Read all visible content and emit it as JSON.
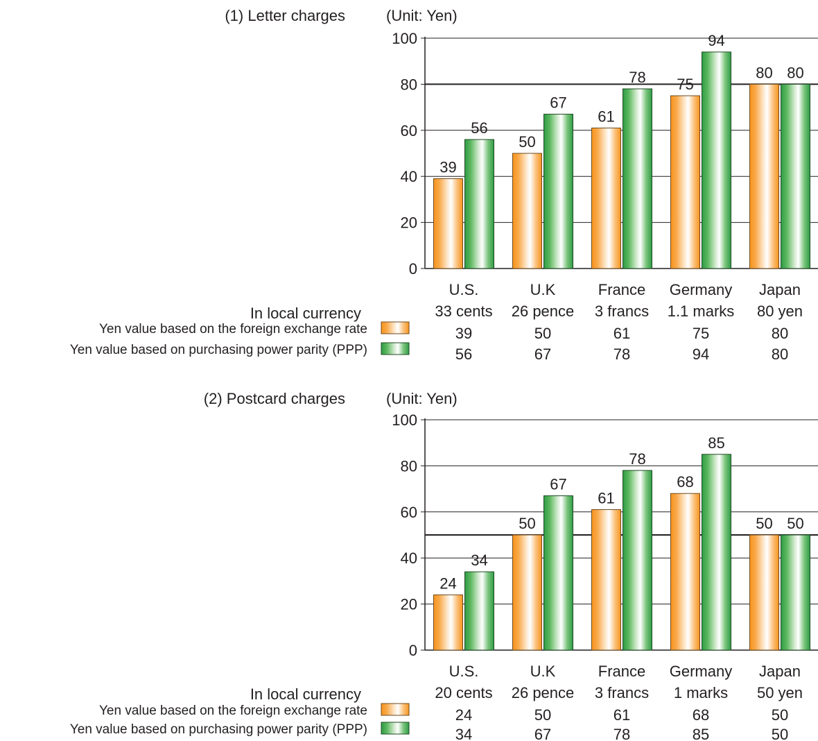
{
  "chart_data": [
    {
      "type": "bar",
      "title": "(1) Letter charges",
      "unit_label": "(Unit: Yen)",
      "ylim": [
        0,
        100
      ],
      "yticks": [
        0,
        20,
        40,
        60,
        80,
        100
      ],
      "grid": true,
      "reference_line": 80,
      "categories": [
        "U.S.",
        "U.K",
        "France",
        "Germany",
        "Japan"
      ],
      "local_currency": [
        "33 cents",
        "26 pence",
        "3 francs",
        "1.1 marks",
        "80 yen"
      ],
      "series": [
        {
          "name": "Yen value based on the foreign exchange rate",
          "values": [
            39,
            50,
            61,
            75,
            80
          ]
        },
        {
          "name": "Yen value based on purchasing power parity (PPP)",
          "values": [
            56,
            67,
            78,
            94,
            80
          ]
        }
      ],
      "table_row_label": "In local currency"
    },
    {
      "type": "bar",
      "title": "(2) Postcard charges",
      "unit_label": "(Unit: Yen)",
      "ylim": [
        0,
        100
      ],
      "yticks": [
        0,
        20,
        40,
        60,
        80,
        100
      ],
      "grid": true,
      "reference_line": 50,
      "categories": [
        "U.S.",
        "U.K",
        "France",
        "Germany",
        "Japan"
      ],
      "local_currency": [
        "20 cents",
        "26 pence",
        "3 francs",
        "1 marks",
        "50 yen"
      ],
      "series": [
        {
          "name": "Yen value based on the foreign exchange rate",
          "values": [
            24,
            50,
            61,
            68,
            50
          ]
        },
        {
          "name": "Yen value based on purchasing power parity (PPP)",
          "values": [
            34,
            67,
            78,
            85,
            50
          ]
        }
      ],
      "table_row_label": "In local currency"
    }
  ],
  "colors": {
    "exchange_rate": "#f7941d",
    "ppp": "#3aa64a",
    "axis": "#231f20",
    "grid": "#231f20"
  }
}
